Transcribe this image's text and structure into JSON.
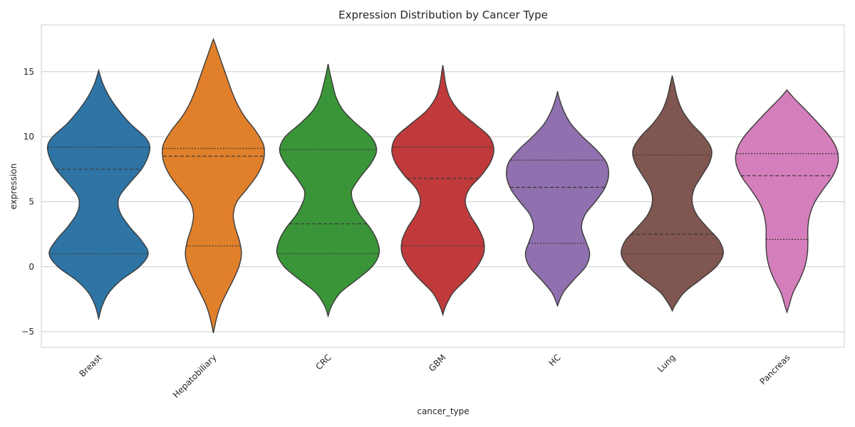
{
  "chart_data": {
    "type": "violin",
    "title": "Expression Distribution by Cancer Type",
    "xlabel": "cancer_type",
    "ylabel": "expression",
    "ylim": [
      -6.2,
      18.6
    ],
    "yticks": [
      -5,
      0,
      5,
      10,
      15
    ],
    "ytick_labels": [
      "−5",
      "0",
      "5",
      "10",
      "15"
    ],
    "grid": true,
    "categories": [
      "Breast",
      "Hepatobiliary",
      "CRC",
      "GBM",
      "HC",
      "Lung",
      "Pancreas"
    ],
    "colors": [
      "#2e75a6",
      "#e0802b",
      "#3a9538",
      "#c03a3b",
      "#9070ae",
      "#805650",
      "#d47ebb"
    ],
    "violins": [
      {
        "name": "Breast",
        "min": -4.0,
        "max": 15.1,
        "q1": 1.0,
        "median": 7.5,
        "q3": 9.2,
        "shape": [
          [
            -4.0,
            0
          ],
          [
            -3.0,
            0.07
          ],
          [
            -2.0,
            0.2
          ],
          [
            -1.0,
            0.45
          ],
          [
            0.0,
            0.8
          ],
          [
            1.0,
            0.97
          ],
          [
            2.0,
            0.84
          ],
          [
            3.0,
            0.62
          ],
          [
            4.0,
            0.44
          ],
          [
            4.8,
            0.38
          ],
          [
            5.5,
            0.42
          ],
          [
            6.5,
            0.62
          ],
          [
            7.5,
            0.84
          ],
          [
            8.5,
            0.97
          ],
          [
            9.3,
            1.0
          ],
          [
            10.0,
            0.9
          ],
          [
            11.0,
            0.62
          ],
          [
            12.0,
            0.4
          ],
          [
            13.0,
            0.22
          ],
          [
            14.0,
            0.09
          ],
          [
            14.7,
            0.03
          ],
          [
            15.1,
            0
          ]
        ]
      },
      {
        "name": "Hepatobiliary",
        "min": -5.1,
        "max": 17.5,
        "q1": 1.6,
        "median": 8.5,
        "q3": 9.1,
        "shape": [
          [
            -5.1,
            0
          ],
          [
            -4.0,
            0.06
          ],
          [
            -3.0,
            0.14
          ],
          [
            -2.0,
            0.26
          ],
          [
            -1.0,
            0.39
          ],
          [
            0.0,
            0.5
          ],
          [
            1.0,
            0.55
          ],
          [
            2.0,
            0.51
          ],
          [
            3.0,
            0.43
          ],
          [
            4.0,
            0.39
          ],
          [
            5.0,
            0.46
          ],
          [
            6.0,
            0.66
          ],
          [
            7.0,
            0.85
          ],
          [
            8.0,
            0.97
          ],
          [
            8.8,
            1.0
          ],
          [
            9.5,
            0.97
          ],
          [
            10.5,
            0.82
          ],
          [
            11.5,
            0.62
          ],
          [
            12.5,
            0.47
          ],
          [
            13.5,
            0.36
          ],
          [
            14.5,
            0.27
          ],
          [
            15.5,
            0.18
          ],
          [
            16.5,
            0.09
          ],
          [
            17.2,
            0.03
          ],
          [
            17.5,
            0
          ]
        ]
      },
      {
        "name": "CRC",
        "min": -3.8,
        "max": 15.6,
        "q1": 1.0,
        "median": 3.3,
        "q3": 9.0,
        "shape": [
          [
            -3.8,
            0
          ],
          [
            -3.0,
            0.07
          ],
          [
            -2.0,
            0.24
          ],
          [
            -1.0,
            0.56
          ],
          [
            0.0,
            0.86
          ],
          [
            1.0,
            1.0
          ],
          [
            2.0,
            0.96
          ],
          [
            3.0,
            0.82
          ],
          [
            4.0,
            0.62
          ],
          [
            5.0,
            0.49
          ],
          [
            5.5,
            0.46
          ],
          [
            6.0,
            0.48
          ],
          [
            7.0,
            0.65
          ],
          [
            8.0,
            0.85
          ],
          [
            9.0,
            0.95
          ],
          [
            10.0,
            0.84
          ],
          [
            11.0,
            0.55
          ],
          [
            12.0,
            0.3
          ],
          [
            13.0,
            0.16
          ],
          [
            14.0,
            0.09
          ],
          [
            15.0,
            0.03
          ],
          [
            15.6,
            0
          ]
        ]
      },
      {
        "name": "GBM",
        "min": -3.7,
        "max": 15.5,
        "q1": 1.6,
        "median": 6.8,
        "q3": 9.2,
        "shape": [
          [
            -3.7,
            0
          ],
          [
            -3.0,
            0.06
          ],
          [
            -2.0,
            0.2
          ],
          [
            -1.0,
            0.45
          ],
          [
            0.0,
            0.67
          ],
          [
            1.0,
            0.8
          ],
          [
            2.0,
            0.8
          ],
          [
            3.0,
            0.69
          ],
          [
            4.0,
            0.53
          ],
          [
            5.0,
            0.44
          ],
          [
            6.0,
            0.52
          ],
          [
            7.0,
            0.75
          ],
          [
            8.0,
            0.93
          ],
          [
            9.0,
            1.0
          ],
          [
            10.0,
            0.91
          ],
          [
            11.0,
            0.62
          ],
          [
            12.0,
            0.32
          ],
          [
            13.0,
            0.14
          ],
          [
            14.0,
            0.06
          ],
          [
            15.0,
            0.02
          ],
          [
            15.5,
            0
          ]
        ]
      },
      {
        "name": "HC",
        "min": -3.0,
        "max": 13.5,
        "q1": 1.8,
        "median": 6.1,
        "q3": 8.2,
        "shape": [
          [
            -3.0,
            0
          ],
          [
            -2.0,
            0.11
          ],
          [
            -1.0,
            0.32
          ],
          [
            0.0,
            0.55
          ],
          [
            1.0,
            0.63
          ],
          [
            2.0,
            0.55
          ],
          [
            3.0,
            0.47
          ],
          [
            4.0,
            0.54
          ],
          [
            5.0,
            0.74
          ],
          [
            6.0,
            0.92
          ],
          [
            7.0,
            1.0
          ],
          [
            8.0,
            0.96
          ],
          [
            9.0,
            0.76
          ],
          [
            10.0,
            0.49
          ],
          [
            11.0,
            0.26
          ],
          [
            12.0,
            0.12
          ],
          [
            13.0,
            0.03
          ],
          [
            13.5,
            0
          ]
        ]
      },
      {
        "name": "Lung",
        "min": -3.4,
        "max": 14.7,
        "q1": 1.0,
        "median": 2.5,
        "q3": 8.6,
        "shape": [
          [
            -3.4,
            0
          ],
          [
            -3.0,
            0.05
          ],
          [
            -2.0,
            0.23
          ],
          [
            -1.0,
            0.55
          ],
          [
            0.0,
            0.86
          ],
          [
            1.0,
            1.0
          ],
          [
            2.0,
            0.92
          ],
          [
            3.0,
            0.69
          ],
          [
            4.0,
            0.48
          ],
          [
            5.0,
            0.39
          ],
          [
            6.0,
            0.43
          ],
          [
            7.0,
            0.58
          ],
          [
            8.0,
            0.73
          ],
          [
            9.0,
            0.77
          ],
          [
            10.0,
            0.62
          ],
          [
            11.0,
            0.38
          ],
          [
            12.0,
            0.2
          ],
          [
            13.0,
            0.1
          ],
          [
            14.0,
            0.04
          ],
          [
            14.7,
            0
          ]
        ]
      },
      {
        "name": "Pancreas",
        "min": -3.5,
        "max": 13.6,
        "q1": 2.1,
        "median": 7.0,
        "q3": 8.7,
        "shape": [
          [
            -3.5,
            0
          ],
          [
            -3.0,
            0.04
          ],
          [
            -2.0,
            0.12
          ],
          [
            -1.0,
            0.25
          ],
          [
            0.0,
            0.35
          ],
          [
            1.0,
            0.4
          ],
          [
            2.0,
            0.41
          ],
          [
            3.0,
            0.41
          ],
          [
            4.0,
            0.45
          ],
          [
            5.0,
            0.55
          ],
          [
            6.0,
            0.72
          ],
          [
            7.0,
            0.9
          ],
          [
            8.0,
            1.0
          ],
          [
            9.0,
            0.98
          ],
          [
            10.0,
            0.84
          ],
          [
            11.0,
            0.62
          ],
          [
            12.0,
            0.38
          ],
          [
            13.0,
            0.13
          ],
          [
            13.6,
            0
          ]
        ]
      }
    ]
  }
}
